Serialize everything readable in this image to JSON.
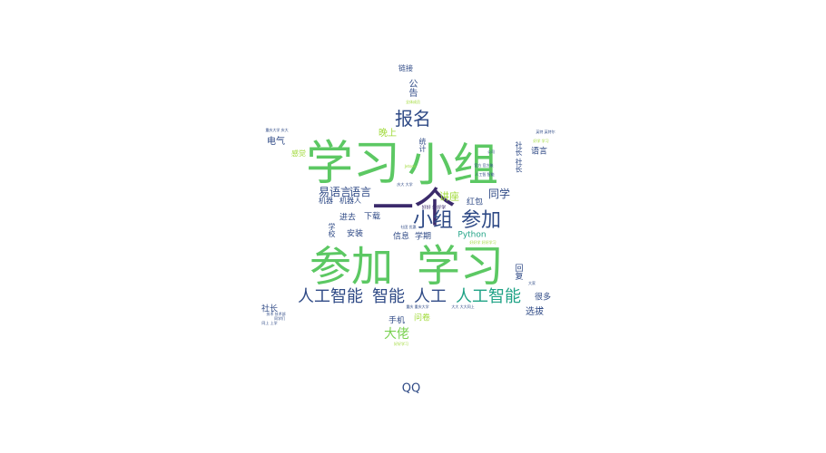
{
  "wordcloud": {
    "words": [
      {
        "text": "学习",
        "color": "#5cc863"
      },
      {
        "text": "小组",
        "color": "#5cc863"
      },
      {
        "text": "一个",
        "color": "#3b2a6b"
      },
      {
        "text": "参加",
        "color": "#5cc863"
      },
      {
        "text": "学习",
        "color": "#5cc863"
      },
      {
        "text": "小组",
        "color": "#2f4a86"
      },
      {
        "text": "参加",
        "color": "#2f4a86"
      },
      {
        "text": "报名",
        "color": "#2f4a86"
      },
      {
        "text": "人工智能",
        "color": "#2f4a86"
      },
      {
        "text": "智能",
        "color": "#2f4a86"
      },
      {
        "text": "人工",
        "color": "#2f4a86"
      },
      {
        "text": "人工智能",
        "color": "#20a386"
      },
      {
        "text": "易语言",
        "color": "#2f4a86"
      },
      {
        "text": "语言",
        "color": "#2f4a86"
      },
      {
        "text": "同学",
        "color": "#2f4a86"
      },
      {
        "text": "讲座",
        "color": "#a0da39"
      },
      {
        "text": "大佬",
        "color": "#7ad151"
      },
      {
        "text": "QQ",
        "color": "#2f4a86"
      },
      {
        "text": "晚上",
        "color": "#a0da39"
      },
      {
        "text": "电气",
        "color": "#2f4a86"
      },
      {
        "text": "选拔",
        "color": "#2f4a86"
      },
      {
        "text": "很多",
        "color": "#2f4a86"
      },
      {
        "text": "社长",
        "color": "#2f4a86"
      },
      {
        "text": "手机",
        "color": "#2f4a86"
      },
      {
        "text": "问卷",
        "color": "#a0da39"
      },
      {
        "text": "安装",
        "color": "#2f4a86"
      },
      {
        "text": "进去",
        "color": "#2f4a86"
      },
      {
        "text": "下载",
        "color": "#2f4a86"
      },
      {
        "text": "信息",
        "color": "#2f4a86"
      },
      {
        "text": "学期",
        "color": "#2f4a86"
      },
      {
        "text": "Python",
        "color": "#20a386"
      },
      {
        "text": "红包",
        "color": "#2f4a86"
      },
      {
        "text": "语言",
        "color": "#2f4a86"
      },
      {
        "text": "机器",
        "color": "#2f4a86"
      },
      {
        "text": "机器人",
        "color": "#2f4a86"
      },
      {
        "text": "链接",
        "color": "#2f4a86"
      },
      {
        "text": "感觉",
        "color": "#a0da39"
      },
      {
        "text": "公告",
        "color": "#2f4a86"
      },
      {
        "text": "学校",
        "color": "#2f4a86"
      },
      {
        "text": "社长 社长",
        "color": "#2f4a86"
      },
      {
        "text": "回复",
        "color": "#2f4a86"
      },
      {
        "text": "统计",
        "color": "#2f4a86"
      },
      {
        "text": "好好 好好学",
        "color": "#3b2a6b"
      },
      {
        "text": "重庆大学 庆大",
        "color": "#2f4a86"
      },
      {
        "text": "社团 优惠",
        "color": "#2f4a86"
      },
      {
        "text": "庆大 大学",
        "color": "#2f4a86"
      },
      {
        "text": "英特 英特尔",
        "color": "#2f4a86"
      },
      {
        "text": "好学 学习",
        "color": "#a0da39"
      },
      {
        "text": "官方 官方账",
        "color": "#2f4a86"
      },
      {
        "text": "全体成员",
        "color": "#a0da39"
      },
      {
        "text": "好好学习",
        "color": "#a0da39"
      },
      {
        "text": "好好学 好好学习",
        "color": "#a0da39"
      },
      {
        "text": "大大 大大同上",
        "color": "#2f4a86"
      },
      {
        "text": "重庆 重庆大学",
        "color": "#2f4a86"
      },
      {
        "text": "技术 技术部",
        "color": "#2f4a86"
      },
      {
        "text": "同学们",
        "color": "#2f4a86"
      },
      {
        "text": "公司",
        "color": "#2f4a86"
      },
      {
        "text": "人工智 智能",
        "color": "#2f4a86"
      },
      {
        "text": "Jetson",
        "color": "#a0da39"
      },
      {
        "text": "大家",
        "color": "#2f4a86"
      },
      {
        "text": "同上 上学",
        "color": "#2f4a86"
      }
    ]
  }
}
